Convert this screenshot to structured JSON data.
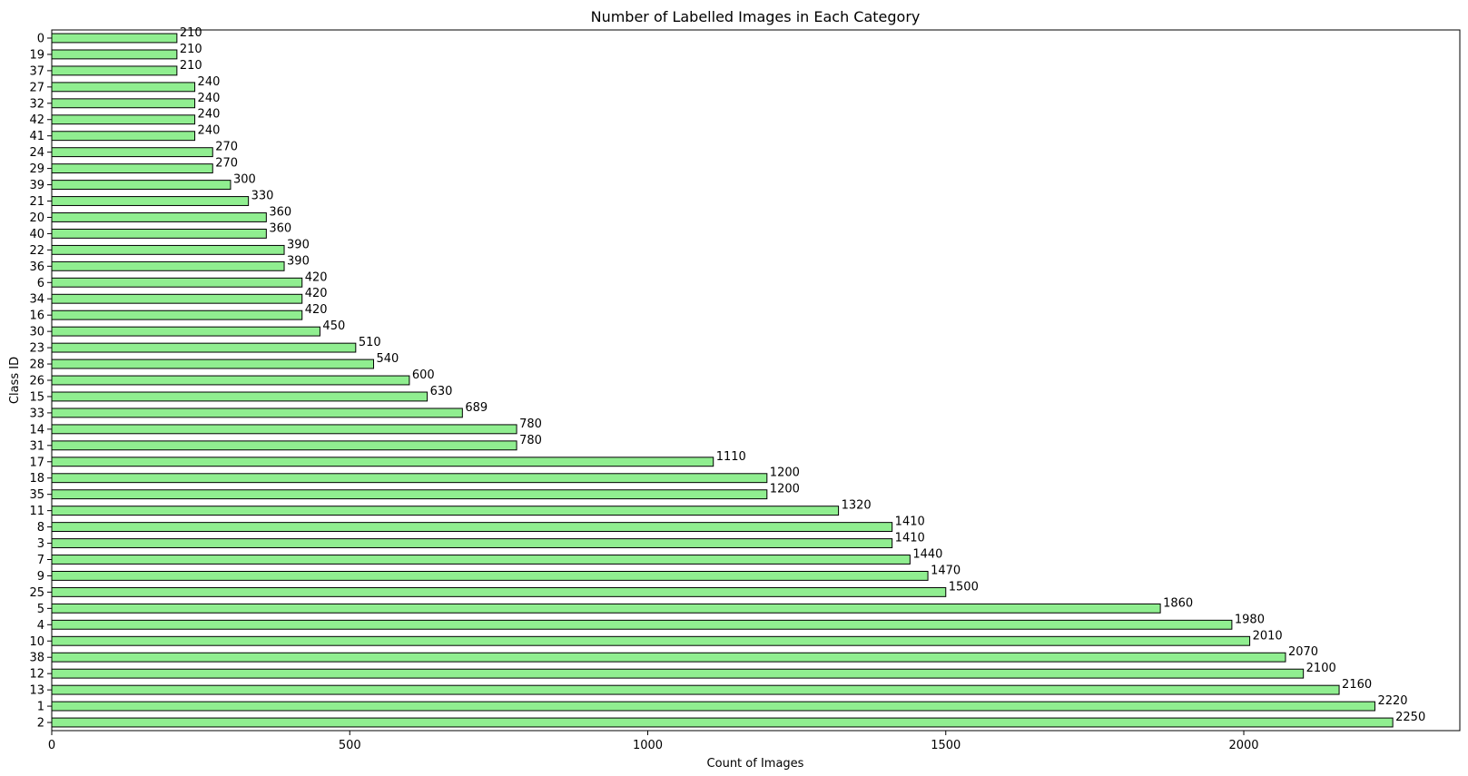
{
  "chart_data": {
    "type": "bar",
    "orientation": "horizontal",
    "title": "Number of Labelled Images in Each Category",
    "xlabel": "Count of Images",
    "ylabel": "Class ID",
    "categories": [
      "0",
      "19",
      "37",
      "27",
      "32",
      "42",
      "41",
      "24",
      "29",
      "39",
      "21",
      "20",
      "40",
      "22",
      "36",
      "6",
      "34",
      "16",
      "30",
      "23",
      "28",
      "26",
      "15",
      "33",
      "14",
      "31",
      "17",
      "18",
      "35",
      "11",
      "8",
      "3",
      "7",
      "9",
      "25",
      "5",
      "4",
      "10",
      "38",
      "12",
      "13",
      "1",
      "2"
    ],
    "values": [
      210,
      210,
      210,
      240,
      240,
      240,
      240,
      270,
      270,
      300,
      330,
      360,
      360,
      390,
      390,
      420,
      420,
      420,
      450,
      510,
      540,
      600,
      630,
      689,
      780,
      780,
      1110,
      1200,
      1200,
      1320,
      1410,
      1410,
      1440,
      1470,
      1500,
      1860,
      1980,
      2010,
      2070,
      2100,
      2160,
      2220,
      2250
    ],
    "xticks": [
      0,
      500,
      1000,
      1500,
      2000
    ],
    "xlim": [
      0,
      2362.5
    ],
    "grid": false,
    "bar_color": "#90ee90",
    "edge_color": "#000000"
  }
}
